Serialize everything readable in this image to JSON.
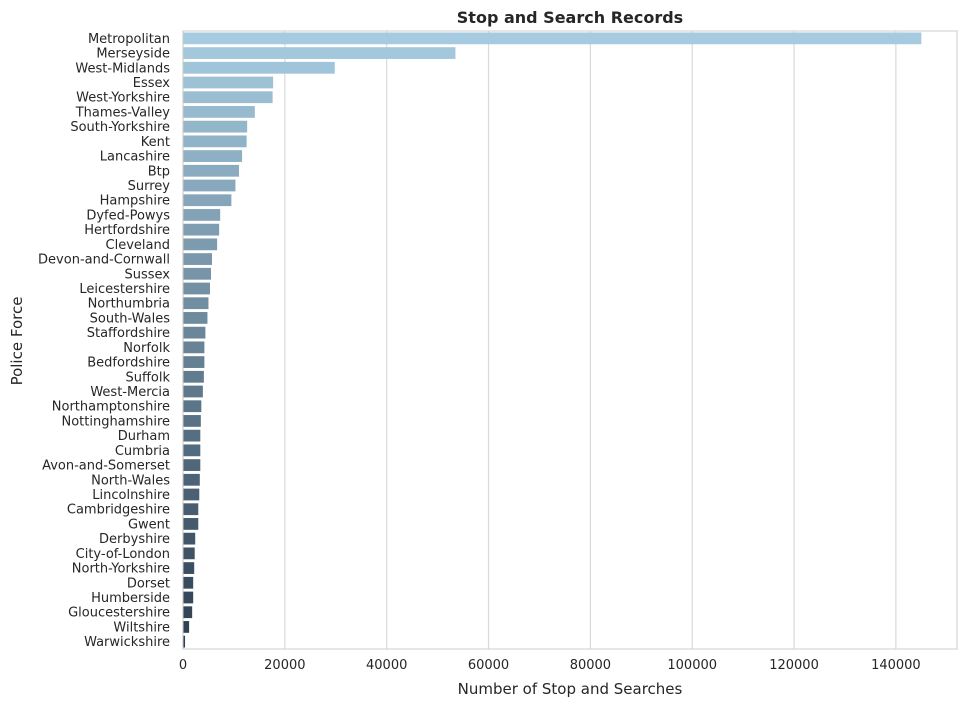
{
  "chart_data": {
    "type": "bar",
    "orientation": "horizontal",
    "title": "Stop and Search Records",
    "xlabel": "Number of Stop and Searches",
    "ylabel": "Police Force",
    "xlim": [
      0,
      152000
    ],
    "xticks": [
      0,
      20000,
      40000,
      60000,
      80000,
      100000,
      120000,
      140000
    ],
    "grid": true,
    "legend": "none",
    "color_gradient": [
      "#a6cbe0",
      "#2d3e50"
    ],
    "categories": [
      "Metropolitan",
      "Merseyside",
      "West-Midlands",
      "Essex",
      "West-Yorkshire",
      "Thames-Valley",
      "South-Yorkshire",
      "Kent",
      "Lancashire",
      "Btp",
      "Surrey",
      "Hampshire",
      "Dyfed-Powys",
      "Hertfordshire",
      "Cleveland",
      "Devon-and-Cornwall",
      "Sussex",
      "Leicestershire",
      "Northumbria",
      "South-Wales",
      "Staffordshire",
      "Norfolk",
      "Bedfordshire",
      "Suffolk",
      "West-Mercia",
      "Northamptonshire",
      "Nottinghamshire",
      "Durham",
      "Cumbria",
      "Avon-and-Somerset",
      "North-Wales",
      "Lincolnshire",
      "Cambridgeshire",
      "Gwent",
      "Derbyshire",
      "City-of-London",
      "North-Yorkshire",
      "Dorset",
      "Humberside",
      "Gloucestershire",
      "Wiltshire",
      "Warwickshire"
    ],
    "values": [
      145000,
      53500,
      29800,
      17700,
      17600,
      14100,
      12600,
      12500,
      11600,
      11000,
      10300,
      9500,
      7300,
      7100,
      6700,
      5700,
      5500,
      5300,
      5000,
      4800,
      4400,
      4200,
      4200,
      4100,
      3900,
      3600,
      3500,
      3400,
      3400,
      3400,
      3300,
      3200,
      3000,
      3000,
      2400,
      2300,
      2200,
      2000,
      2000,
      1800,
      1200,
      400
    ]
  }
}
